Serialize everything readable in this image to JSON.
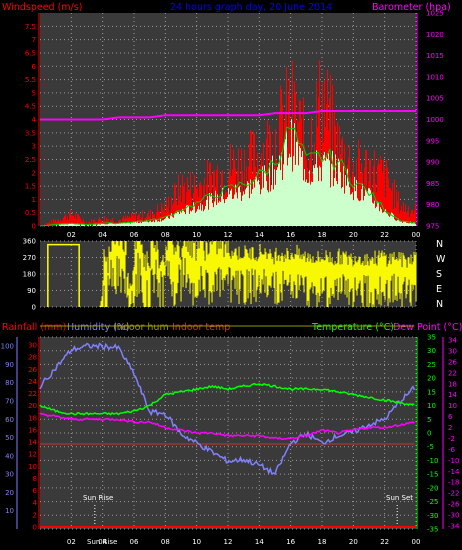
{
  "header": {
    "wind_label": "Windspeed (m/s)",
    "title": "24 hours graph day, 20 June 2014",
    "baro_label": "Barometer (hpa)"
  },
  "lower_header": {
    "rain_label": "Rainfall (mm)",
    "hum_label": "Humidity (%)",
    "indoor_hum_label": "Indoor hum",
    "indoor_temp_label": "Indoor temp",
    "temp_label": "Temperature (°C)",
    "dew_label": "Dew Point (°C)"
  },
  "annotations": {
    "sunrise": "Sun Rise",
    "sunset": "Sun Set",
    "bottom_overlap": "Sun Rise"
  },
  "colors": {
    "wind": "#ff0000",
    "gust": "#ff0000",
    "avg": "#00cc00",
    "fill": "#ccffcc",
    "baro": "#ff00ff",
    "dir": "#ffff00",
    "rain": "#ff0000",
    "hum": "#8080ff",
    "indoor_hum": "#999900",
    "indoor_temp": "#cc3333",
    "temp": "#00ff00",
    "dew": "#ff00ff"
  },
  "chart_data": [
    {
      "type": "area",
      "x_ticks": [
        "02",
        "04",
        "06",
        "08",
        "10",
        "12",
        "14",
        "16",
        "18",
        "20",
        "22",
        "00"
      ],
      "y_left_ticks": [
        "0",
        "0.5",
        "1",
        "1.5",
        "2",
        "2.5",
        "3",
        "3.5",
        "4",
        "4.5",
        "5",
        "5.5",
        "6",
        "6.5",
        "7",
        "7.5"
      ],
      "y_right_ticks": [
        "975",
        "980",
        "985",
        "990",
        "995",
        "1000",
        "1005",
        "1010",
        "1015",
        "1020",
        "1025"
      ],
      "ylim_left": [
        0,
        8
      ],
      "ylim_right": [
        975,
        1025
      ],
      "x_hours": [
        0,
        1,
        2,
        3,
        4,
        5,
        6,
        7,
        8,
        9,
        10,
        11,
        12,
        13,
        14,
        15,
        16,
        17,
        18,
        19,
        20,
        21,
        22,
        23,
        24
      ],
      "series": [
        {
          "key": "gust",
          "values": [
            0,
            0.3,
            0.6,
            0.2,
            0.4,
            0.3,
            0.5,
            0.6,
            1,
            2,
            2,
            2.5,
            3,
            3.2,
            3.6,
            4.5,
            6,
            4,
            6.5,
            4,
            3,
            3,
            2.5,
            1,
            0.8
          ]
        },
        {
          "key": "avg",
          "values": [
            0,
            0.05,
            0.1,
            0.05,
            0.1,
            0.1,
            0.15,
            0.2,
            0.3,
            0.6,
            0.8,
            1.1,
            1.3,
            1.5,
            1.8,
            2.3,
            3.5,
            2.3,
            2.5,
            2.3,
            1.6,
            1.2,
            0.6,
            0.2,
            0.1
          ]
        },
        {
          "key": "baro",
          "values": [
            1000,
            1000,
            1000,
            1000,
            1000,
            1000.5,
            1000.5,
            1000.5,
            1001,
            1001,
            1001,
            1001,
            1001,
            1001,
            1001,
            1001.5,
            1001.5,
            1001.5,
            1002,
            1002,
            1002,
            1002,
            1002,
            1002,
            1002
          ]
        }
      ]
    },
    {
      "type": "scatter",
      "x_ticks": [
        "02",
        "04",
        "06",
        "08",
        "10",
        "12",
        "14",
        "16",
        "18",
        "20",
        "22",
        "00"
      ],
      "y_ticks": [
        "0",
        "90",
        "180",
        "270",
        "360"
      ],
      "y_right_ticks": [
        "N",
        "W",
        "S",
        "E",
        "N"
      ],
      "ylim": [
        0,
        360
      ],
      "series": [
        {
          "key": "dir",
          "x": [
            0.5,
            1,
            1.5,
            2,
            2.5,
            3,
            3.5,
            4,
            4.5,
            5,
            5.5,
            6,
            6.5,
            7,
            7.5,
            8,
            8.5,
            9,
            9.5,
            10,
            10.5,
            11,
            11.5,
            12,
            12.5,
            13,
            13.5,
            14,
            14.5,
            15,
            15.5,
            16,
            16.5,
            17,
            17.5,
            18,
            18.5,
            19,
            19.5,
            20,
            20.5,
            21,
            21.5,
            22,
            22.5,
            23,
            23.5
          ],
          "values": [
            340,
            340,
            340,
            340,
            340,
            0,
            0,
            180,
            300,
            300,
            90,
            300,
            180,
            300,
            200,
            300,
            250,
            300,
            250,
            280,
            250,
            270,
            250,
            260,
            250,
            250,
            250,
            260,
            230,
            250,
            240,
            250,
            230,
            230,
            220,
            230,
            220,
            230,
            220,
            230,
            220,
            220,
            230,
            220,
            230,
            210,
            230
          ]
        }
      ]
    },
    {
      "type": "line",
      "x_ticks": [
        "02",
        "04",
        "06",
        "08",
        "10",
        "12",
        "14",
        "16",
        "18",
        "20",
        "22",
        "00"
      ],
      "y_rain_ticks": [
        "0",
        "2",
        "4",
        "6",
        "8",
        "10",
        "12",
        "14",
        "16",
        "18",
        "20",
        "22",
        "24",
        "26",
        "28",
        "30"
      ],
      "y_hum_ticks": [
        "10",
        "20",
        "30",
        "40",
        "50",
        "60",
        "70",
        "80",
        "90",
        "100"
      ],
      "y_temp_ticks": [
        "-35",
        "-30",
        "-25",
        "-20",
        "-15",
        "-10",
        "-5",
        "0",
        "5",
        "10",
        "15",
        "20",
        "25",
        "30",
        "35"
      ],
      "y_dew_ticks": [
        "-34",
        "-30",
        "-26",
        "-22",
        "-18",
        "-14",
        "-10",
        "-6",
        "-2",
        "2",
        "6",
        "10",
        "14",
        "18",
        "22",
        "26",
        "30",
        "34"
      ],
      "ylim_temp": [
        -35,
        35
      ],
      "ylim_hum": [
        10,
        100
      ],
      "x_hours": [
        0,
        1,
        2,
        3,
        4,
        5,
        6,
        7,
        8,
        9,
        10,
        11,
        12,
        13,
        14,
        15,
        16,
        17,
        18,
        19,
        20,
        21,
        22,
        23,
        24
      ],
      "series": [
        {
          "key": "hum",
          "values": [
            78,
            88,
            98,
            100,
            100,
            99,
            85,
            64,
            63,
            52,
            47,
            42,
            37,
            38,
            35,
            30,
            47,
            52,
            47,
            51,
            53,
            57,
            60,
            70,
            78
          ]
        },
        {
          "key": "temp",
          "values": [
            10,
            8,
            7,
            7,
            7,
            7,
            8,
            10,
            14,
            15,
            16,
            17,
            16,
            17,
            18,
            17,
            16,
            16,
            16,
            15,
            14,
            13,
            12,
            11,
            10
          ]
        },
        {
          "key": "dew",
          "values": [
            7,
            6,
            5,
            5,
            5,
            5,
            4,
            4,
            2,
            1,
            0,
            0,
            -1,
            -1,
            -1,
            -2,
            -2,
            -1,
            1,
            0,
            1,
            2,
            2,
            3,
            4
          ]
        },
        {
          "key": "indoor_hum",
          "values": [
            39,
            39,
            39,
            39,
            39,
            39,
            39,
            39,
            39,
            39,
            39,
            39,
            39,
            39,
            39,
            39,
            39,
            39,
            39,
            39,
            39,
            39,
            39,
            39,
            39
          ]
        },
        {
          "key": "indoor_temp",
          "values": [
            -4,
            -4,
            -4,
            -4,
            -4,
            -4,
            -4,
            -4,
            -4,
            -4,
            -4,
            -4,
            -4,
            -4,
            -4,
            -4,
            -4,
            -4,
            -4,
            -4,
            -4,
            -4,
            -4,
            -4,
            -4
          ]
        },
        {
          "key": "rain",
          "values": [
            0,
            0,
            0,
            0,
            0,
            0,
            0,
            0,
            0,
            0,
            0,
            0,
            0,
            0,
            0,
            0,
            0,
            0,
            0,
            0,
            0,
            0,
            0,
            0,
            0
          ]
        }
      ],
      "sunrise_hour": 3.5,
      "sunset_hour": 22.8
    }
  ]
}
